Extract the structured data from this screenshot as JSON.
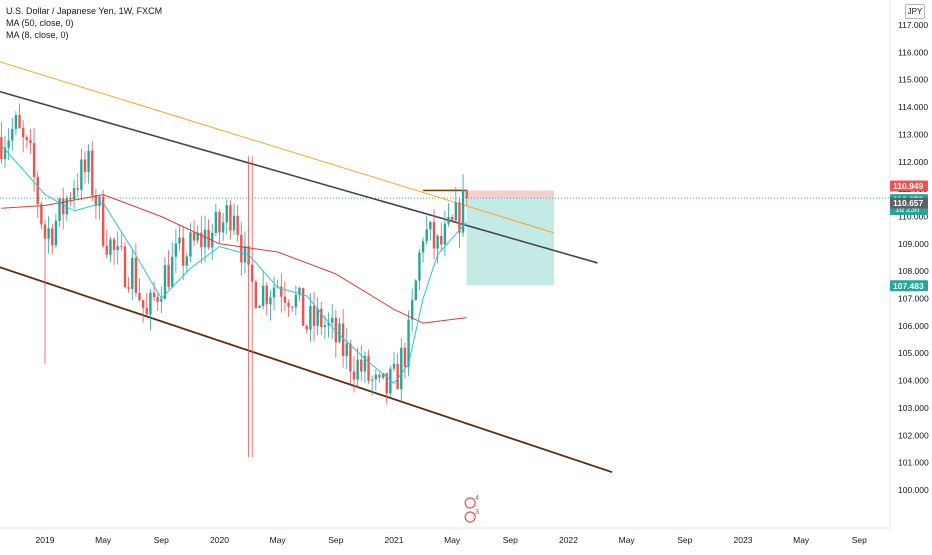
{
  "legend": {
    "symbol": "U.S. Dollar / Japanese Yen, 1W, FXCM",
    "ma1": "MA (50, close, 0)",
    "ma2": "MA (8, close, 0)"
  },
  "currency_badge": "JPY",
  "colors": {
    "up": "#26a69a",
    "down": "#ef5350",
    "ma50": "#e53935",
    "ma8": "#26c6da",
    "channel_upper": "#434651",
    "channel_lower": "#5d2b0b",
    "trend_orange": "#f5a623",
    "stop_zone": "#f7c5c5",
    "target_zone": "#b9e6e1"
  },
  "chart_data": {
    "type": "candlestick",
    "x_ticks": [
      "2019",
      "May",
      "Sep",
      "2020",
      "May",
      "Sep",
      "2021",
      "May",
      "Sep",
      "2022",
      "May",
      "Sep",
      "2023",
      "May",
      "Sep"
    ],
    "x_tick_dates": [
      "2019-01",
      "2019-05",
      "2019-09",
      "2020-01",
      "2020-05",
      "2020-09",
      "2021-01",
      "2021-05",
      "2021-09",
      "2022-01",
      "2022-05",
      "2022-09",
      "2023-01",
      "2023-05",
      "2023-09"
    ],
    "y_ticks": [
      "117.000",
      "116.000",
      "115.000",
      "114.000",
      "113.000",
      "112.000",
      "111.000",
      "110.000",
      "109.000",
      "108.000",
      "107.000",
      "106.000",
      "105.000",
      "104.000",
      "103.000",
      "102.000",
      "101.000",
      "100.000"
    ],
    "ylim": [
      99.8,
      117.5
    ],
    "close_path": [
      [
        "2018-10",
        112.9
      ],
      [
        "2018-11",
        113.2
      ],
      [
        "2018-12",
        112.0
      ],
      [
        "2019-01",
        109.3
      ],
      [
        "2019-02",
        110.0
      ],
      [
        "2019-03",
        111.3
      ],
      [
        "2019-04",
        111.7
      ],
      [
        "2019-05",
        109.6
      ],
      [
        "2019-06",
        108.3
      ],
      [
        "2019-07",
        108.1
      ],
      [
        "2019-08",
        106.2
      ],
      [
        "2019-09",
        107.7
      ],
      [
        "2019-10",
        108.4
      ],
      [
        "2019-11",
        108.8
      ],
      [
        "2019-12",
        109.3
      ],
      [
        "2020-01",
        109.5
      ],
      [
        "2020-02",
        110.5
      ],
      [
        "2020-03",
        107.5
      ],
      [
        "2020-04",
        107.3
      ],
      [
        "2020-05",
        107.6
      ],
      [
        "2020-06",
        107.2
      ],
      [
        "2020-07",
        106.0
      ],
      [
        "2020-08",
        106.2
      ],
      [
        "2020-09",
        105.5
      ],
      [
        "2020-10",
        104.8
      ],
      [
        "2020-11",
        104.3
      ],
      [
        "2020-12",
        103.5
      ],
      [
        "2021-01",
        103.9
      ],
      [
        "2021-02",
        105.5
      ],
      [
        "2021-03",
        109.5
      ],
      [
        "2021-04",
        108.8
      ],
      [
        "2021-05",
        109.5
      ],
      [
        "2021-06",
        110.67
      ]
    ],
    "ma50_path": [
      [
        "2018-10",
        110.3
      ],
      [
        "2019-01",
        110.4
      ],
      [
        "2019-05",
        110.8
      ],
      [
        "2019-09",
        110.0
      ],
      [
        "2020-01",
        109.0
      ],
      [
        "2020-05",
        108.7
      ],
      [
        "2020-09",
        107.9
      ],
      [
        "2021-01",
        106.6
      ],
      [
        "2021-03",
        106.1
      ],
      [
        "2021-06",
        106.3
      ]
    ],
    "ma8_path": [
      [
        "2018-10",
        112.6
      ],
      [
        "2019-01",
        110.8
      ],
      [
        "2019-03",
        110.2
      ],
      [
        "2019-05",
        110.5
      ],
      [
        "2019-07",
        108.8
      ],
      [
        "2019-09",
        107.0
      ],
      [
        "2019-11",
        108.1
      ],
      [
        "2020-01",
        108.9
      ],
      [
        "2020-03",
        108.6
      ],
      [
        "2020-05",
        107.4
      ],
      [
        "2020-07",
        107.1
      ],
      [
        "2020-09",
        105.8
      ],
      [
        "2020-11",
        104.8
      ],
      [
        "2021-01",
        103.9
      ],
      [
        "2021-02",
        104.6
      ],
      [
        "2021-03",
        107.0
      ],
      [
        "2021-04",
        108.6
      ],
      [
        "2021-06",
        109.8
      ]
    ],
    "channel_upper": [
      [
        "2018-09",
        114.7
      ],
      [
        "2022-03",
        108.3
      ]
    ],
    "channel_lower": [
      [
        "2018-09",
        108.3
      ],
      [
        "2022-04",
        100.65
      ]
    ],
    "trend_orange": [
      [
        "2018-09",
        115.8
      ],
      [
        "2021-12",
        109.4
      ]
    ],
    "resistance": {
      "value": 110.95,
      "from": "2021-03",
      "to": "2021-06"
    },
    "position": {
      "entry": 110.67,
      "stop": 110.949,
      "target": 107.483,
      "from": "2021-06",
      "to": "2021-12"
    },
    "price_labels": [
      {
        "text": "110.949",
        "value": 110.949,
        "kind": "stop"
      },
      {
        "text": "110.672",
        "value": 110.672,
        "kind": "last",
        "sub": "1d 23h"
      },
      {
        "text": "110.657",
        "value": 110.657,
        "kind": "ma"
      },
      {
        "text": "107.483",
        "value": 107.483,
        "kind": "target"
      }
    ],
    "events": [
      {
        "date": "2021-05",
        "count": 4
      },
      {
        "date": "2021-05",
        "count": 3
      }
    ]
  }
}
